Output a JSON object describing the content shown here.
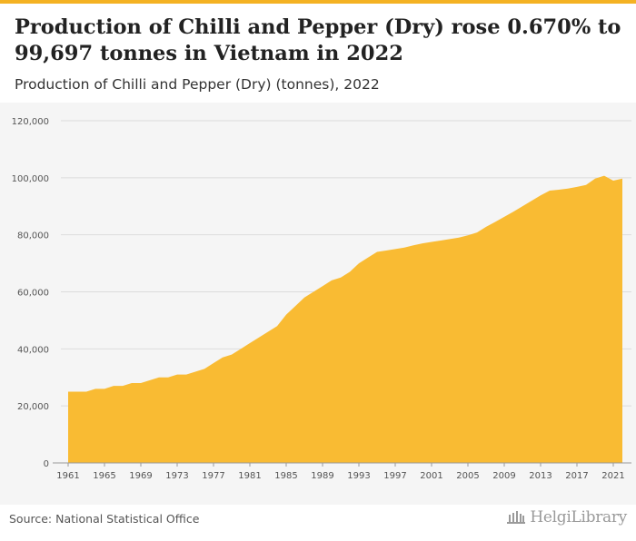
{
  "title": "Production of Chilli and Pepper (Dry) rose 0.670% to 99,697 tonnes in Vietnam in 2022",
  "subtitle": "Production of Chilli and Pepper (Dry) (tonnes), 2022",
  "source": "Source: National Statistical Office",
  "logo_text": "HelgiLibrary",
  "colors": {
    "area": "#f9bb33",
    "grid": "#dcdcdc",
    "accent": "#f4b223",
    "background": "#f5f5f5"
  },
  "chart_data": {
    "type": "area",
    "ylim": [
      0,
      120000
    ],
    "xlim": [
      1961,
      2022
    ],
    "yticks": [
      0,
      20000,
      40000,
      60000,
      80000,
      100000,
      120000
    ],
    "ytick_labels": [
      "0",
      "20,000",
      "40,000",
      "60,000",
      "80,000",
      "100,000",
      "120,000"
    ],
    "xticks": [
      1961,
      1965,
      1969,
      1973,
      1977,
      1981,
      1985,
      1989,
      1993,
      1997,
      2001,
      2005,
      2009,
      2013,
      2017,
      2021
    ],
    "grid": true,
    "x": [
      1961,
      1962,
      1963,
      1964,
      1965,
      1966,
      1967,
      1968,
      1969,
      1970,
      1971,
      1972,
      1973,
      1974,
      1975,
      1976,
      1977,
      1978,
      1979,
      1980,
      1981,
      1982,
      1983,
      1984,
      1985,
      1986,
      1987,
      1988,
      1989,
      1990,
      1991,
      1992,
      1993,
      1994,
      1995,
      1996,
      1997,
      1998,
      1999,
      2000,
      2001,
      2002,
      2003,
      2004,
      2005,
      2006,
      2007,
      2008,
      2009,
      2010,
      2011,
      2012,
      2013,
      2014,
      2015,
      2016,
      2017,
      2018,
      2019,
      2020,
      2021,
      2022
    ],
    "values": [
      25000,
      25000,
      25000,
      26000,
      26000,
      27000,
      27000,
      28000,
      28000,
      29000,
      30000,
      30000,
      31000,
      31000,
      32000,
      33000,
      35000,
      37000,
      38000,
      40000,
      42000,
      44000,
      46000,
      48000,
      52000,
      55000,
      58000,
      60000,
      62000,
      64000,
      65000,
      67000,
      70000,
      72000,
      74000,
      74500,
      75000,
      75500,
      76300,
      77000,
      77500,
      78000,
      78500,
      79000,
      79800,
      80800,
      82800,
      84500,
      86300,
      88100,
      90000,
      91900,
      93800,
      95500,
      95800,
      96200,
      96800,
      97500,
      99700,
      100700,
      99000,
      99697
    ]
  }
}
